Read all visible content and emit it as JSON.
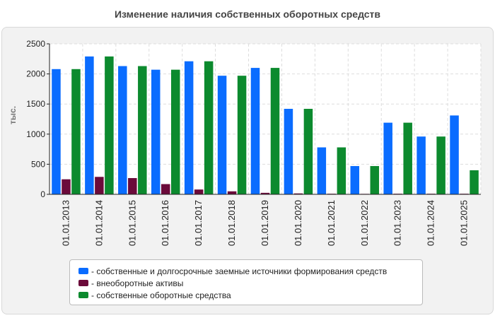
{
  "chart_data": {
    "type": "bar",
    "title": "Изменение наличия собственных оборотных средств",
    "ylabel": "тыс.",
    "xlabel": "",
    "ylim": [
      0,
      2500
    ],
    "yticks": [
      0,
      500,
      1000,
      1500,
      2000,
      2500
    ],
    "grid": true,
    "legend_position": "bottom",
    "categories": [
      "01.01.2013",
      "01.01.2014",
      "01.01.2015",
      "01.01.2016",
      "01.01.2017",
      "01.01.2018",
      "01.01.2019",
      "01.01.2020",
      "01.01.2021",
      "01.01.2022",
      "01.01.2023",
      "01.01.2024",
      "01.01.2025"
    ],
    "series": [
      {
        "name": "собственные и долгосрочные заемные источники формирования средств",
        "color": "#0a6cff",
        "values": [
          2080,
          2290,
          2130,
          2070,
          2210,
          1970,
          2100,
          1420,
          780,
          470,
          1190,
          960,
          1310
        ]
      },
      {
        "name": "внеоборотные активы",
        "color": "#6b0a3a",
        "values": [
          250,
          290,
          270,
          170,
          80,
          50,
          25,
          15,
          10,
          8,
          10,
          10,
          10
        ]
      },
      {
        "name": "собственные оборотные средства",
        "color": "#0c8a2e",
        "values": [
          2080,
          2290,
          2130,
          2070,
          2210,
          1970,
          2100,
          1420,
          780,
          470,
          1190,
          960,
          400
        ]
      }
    ]
  }
}
